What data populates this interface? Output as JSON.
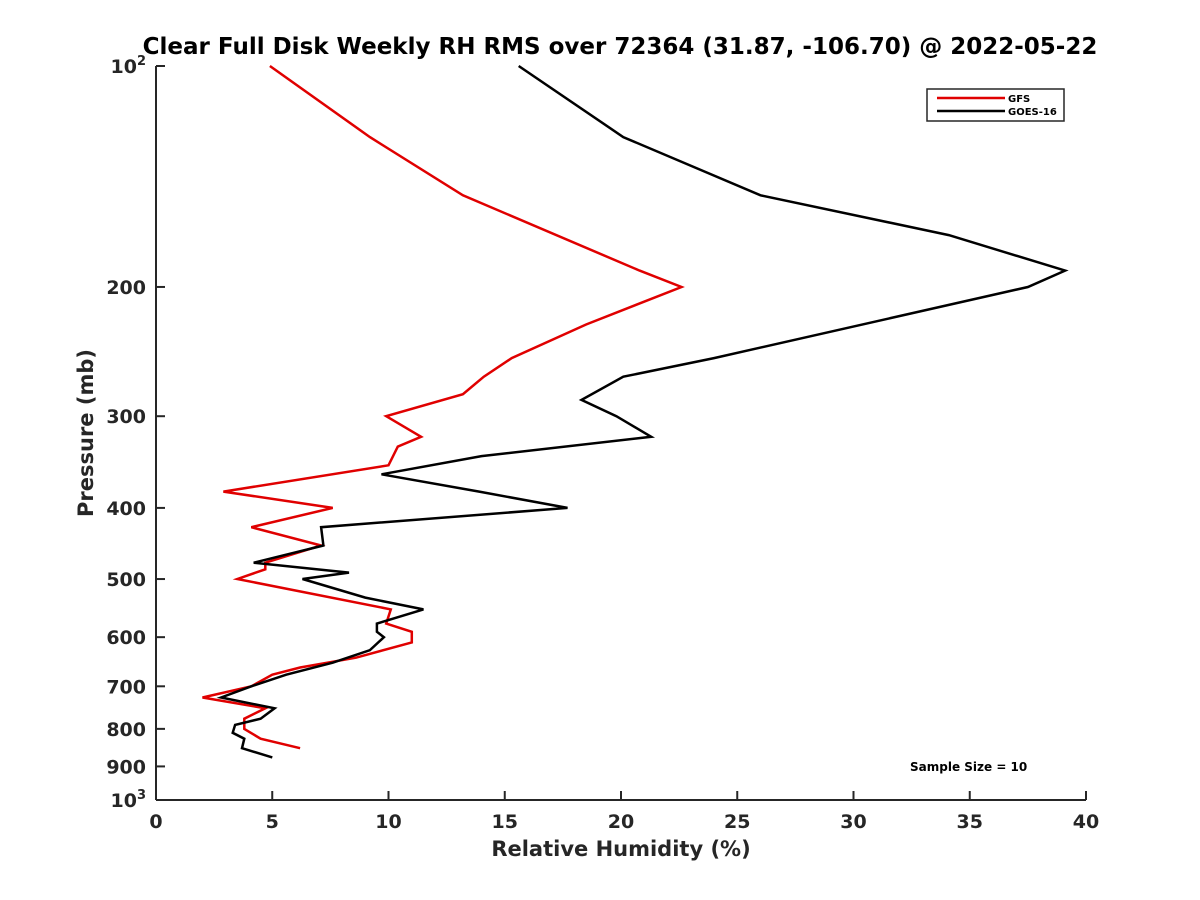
{
  "chart_data": {
    "type": "line",
    "title": "Clear Full Disk Weekly RH RMS over 72364 (31.87, -106.70) @ 2022-05-22",
    "xlabel": "Relative Humidity (%)",
    "ylabel": "Pressure (mb)",
    "xlim": [
      0,
      40
    ],
    "ylim": [
      1000,
      100
    ],
    "y_scale": "log",
    "y_reversed": true,
    "grid": false,
    "legend_position": "top-right",
    "x_ticks": [
      "0",
      "5",
      "10",
      "15",
      "20",
      "25",
      "30",
      "35",
      "40"
    ],
    "y_ticks": [
      {
        "value": 100,
        "base": "10",
        "exp": "2"
      },
      {
        "value": 200,
        "label": "200"
      },
      {
        "value": 300,
        "label": "300"
      },
      {
        "value": 400,
        "label": "400"
      },
      {
        "value": 500,
        "label": "500"
      },
      {
        "value": 600,
        "label": "600"
      },
      {
        "value": 700,
        "label": "700"
      },
      {
        "value": 800,
        "label": "800"
      },
      {
        "value": 900,
        "label": "900"
      },
      {
        "value": 1000,
        "base": "10",
        "exp": "3"
      }
    ],
    "annotation": "Sample Size = 10",
    "series": [
      {
        "name": "GFS",
        "color": "#e00000",
        "points": [
          [
            4.9,
            100
          ],
          [
            9.2,
            125
          ],
          [
            13.2,
            150
          ],
          [
            20.8,
            190
          ],
          [
            22.6,
            200
          ],
          [
            18.5,
            225
          ],
          [
            15.3,
            250
          ],
          [
            14.1,
            265
          ],
          [
            13.2,
            280
          ],
          [
            9.9,
            300
          ],
          [
            11.4,
            320
          ],
          [
            10.4,
            330
          ],
          [
            10.0,
            350
          ],
          [
            2.9,
            380
          ],
          [
            7.6,
            400
          ],
          [
            4.1,
            425
          ],
          [
            7.1,
            450
          ],
          [
            4.7,
            475
          ],
          [
            4.7,
            485
          ],
          [
            3.5,
            500
          ],
          [
            10.1,
            550
          ],
          [
            9.9,
            575
          ],
          [
            11.0,
            590
          ],
          [
            11.0,
            610
          ],
          [
            8.6,
            640
          ],
          [
            6.2,
            660
          ],
          [
            5.0,
            675
          ],
          [
            4.1,
            700
          ],
          [
            2.0,
            725
          ],
          [
            4.7,
            750
          ],
          [
            3.8,
            775
          ],
          [
            3.8,
            800
          ],
          [
            4.5,
            825
          ],
          [
            6.2,
            850
          ]
        ]
      },
      {
        "name": "GOES-16",
        "color": "#000000",
        "points": [
          [
            15.6,
            100
          ],
          [
            20.1,
            125
          ],
          [
            26.0,
            150
          ],
          [
            34.1,
            170
          ],
          [
            39.1,
            190
          ],
          [
            37.5,
            200
          ],
          [
            24.0,
            250
          ],
          [
            20.1,
            265
          ],
          [
            18.3,
            285
          ],
          [
            19.8,
            300
          ],
          [
            21.3,
            320
          ],
          [
            14.0,
            340
          ],
          [
            9.7,
            360
          ],
          [
            13.9,
            380
          ],
          [
            17.7,
            400
          ],
          [
            7.1,
            425
          ],
          [
            7.2,
            450
          ],
          [
            4.2,
            475
          ],
          [
            8.3,
            490
          ],
          [
            6.3,
            500
          ],
          [
            9.0,
            530
          ],
          [
            11.5,
            550
          ],
          [
            9.5,
            575
          ],
          [
            9.5,
            590
          ],
          [
            9.8,
            600
          ],
          [
            9.2,
            625
          ],
          [
            7.6,
            650
          ],
          [
            5.6,
            675
          ],
          [
            4.1,
            700
          ],
          [
            2.8,
            725
          ],
          [
            5.1,
            750
          ],
          [
            4.5,
            775
          ],
          [
            3.4,
            790
          ],
          [
            3.3,
            810
          ],
          [
            3.8,
            825
          ],
          [
            3.7,
            850
          ],
          [
            5.0,
            875
          ]
        ]
      }
    ]
  }
}
